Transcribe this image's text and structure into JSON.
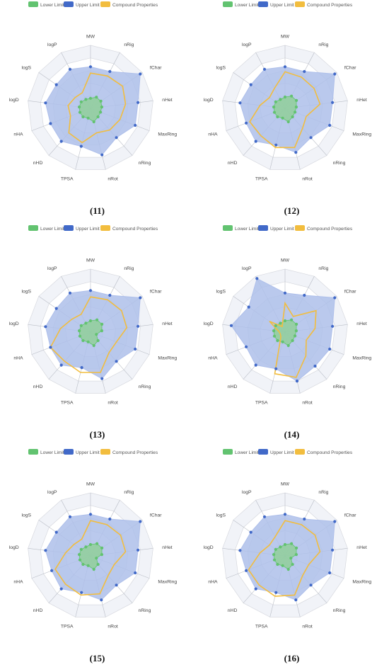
{
  "figure": {
    "colors": {
      "lower": "#62c370",
      "upper": "#4169c8",
      "compound": "#f2bd3e",
      "upper_fill": "#aebfea",
      "lower_fill": "#8fcf95",
      "grid": "#d7d9df",
      "band": "#f1f3f8",
      "label": "#444444"
    }
  },
  "chart_data": [
    {
      "type": "radar",
      "caption": "(11)",
      "legend": {
        "position": "top",
        "items": [
          "Lower Limit",
          "Upper Limit",
          "Compound Properties"
        ]
      },
      "axes": [
        "MW",
        "nRig",
        "fChar",
        "nHet",
        "MaxRing",
        "nRing",
        "nRot",
        "TPSA",
        "nHD",
        "nHA",
        "logD",
        "logS",
        "logP"
      ],
      "range": [
        0,
        1
      ],
      "series": [
        {
          "name": "Lower Limit",
          "values": [
            0.16,
            0.2,
            0.2,
            0.18,
            0.17,
            0.18,
            0.22,
            0.16,
            0.18,
            0.18,
            0.18,
            0.18,
            0.16
          ]
        },
        {
          "name": "Upper Limit",
          "values": [
            0.66,
            0.66,
            0.96,
            0.76,
            0.76,
            0.62,
            0.76,
            0.62,
            0.7,
            0.68,
            0.72,
            0.66,
            0.7
          ]
        },
        {
          "name": "Compound Properties",
          "values": [
            0.56,
            0.58,
            0.62,
            0.56,
            0.5,
            0.46,
            0.4,
            0.56,
            0.52,
            0.34,
            0.36,
            0.3,
            0.28
          ]
        }
      ]
    },
    {
      "type": "radar",
      "caption": "(12)",
      "legend": {
        "position": "top",
        "items": [
          "Lower Limit",
          "Upper Limit",
          "Compound Properties"
        ]
      },
      "axes": [
        "MW",
        "nRig",
        "fChar",
        "nHet",
        "MaxRing",
        "nRing",
        "nRot",
        "TPSA",
        "nHD",
        "nHA",
        "logD",
        "logS",
        "logP"
      ],
      "range": [
        0,
        1
      ],
      "series": [
        {
          "name": "Lower Limit",
          "values": [
            0.18,
            0.22,
            0.22,
            0.18,
            0.17,
            0.18,
            0.22,
            0.16,
            0.18,
            0.18,
            0.18,
            0.18,
            0.16
          ]
        },
        {
          "name": "Upper Limit",
          "values": [
            0.66,
            0.66,
            0.96,
            0.76,
            0.76,
            0.62,
            0.72,
            0.6,
            0.7,
            0.66,
            0.72,
            0.66,
            0.7
          ]
        },
        {
          "name": "Compound Properties",
          "values": [
            0.58,
            0.56,
            0.56,
            0.56,
            0.36,
            0.42,
            0.64,
            0.64,
            0.58,
            0.6,
            0.4,
            0.3,
            0.36
          ]
        }
      ]
    },
    {
      "type": "radar",
      "caption": "(13)",
      "legend": {
        "position": "top",
        "items": [
          "Lower Limit",
          "Upper Limit",
          "Compound Properties"
        ]
      },
      "axes": [
        "MW",
        "nRig",
        "fChar",
        "nHet",
        "MaxRing",
        "nRing",
        "nRot",
        "TPSA",
        "nHD",
        "nHA",
        "logD",
        "logS",
        "logP"
      ],
      "range": [
        0,
        1
      ],
      "series": [
        {
          "name": "Lower Limit",
          "values": [
            0.18,
            0.22,
            0.22,
            0.18,
            0.1,
            0.18,
            0.22,
            0.16,
            0.18,
            0.18,
            0.18,
            0.18,
            0.16
          ]
        },
        {
          "name": "Upper Limit",
          "values": [
            0.66,
            0.66,
            0.96,
            0.76,
            0.76,
            0.62,
            0.76,
            0.58,
            0.7,
            0.68,
            0.72,
            0.66,
            0.7
          ]
        },
        {
          "name": "Compound Properties",
          "values": [
            0.56,
            0.58,
            0.6,
            0.58,
            0.44,
            0.44,
            0.66,
            0.66,
            0.62,
            0.68,
            0.48,
            0.36,
            0.32
          ]
        }
      ]
    },
    {
      "type": "radar",
      "caption": "(14)",
      "legend": {
        "position": "top",
        "items": [
          "Lower Limit",
          "Upper Limit",
          "Compound Properties"
        ]
      },
      "axes": [
        "MW",
        "nRig",
        "fChar",
        "nHet",
        "MaxRing",
        "nRing",
        "nRot",
        "TPSA",
        "nHD",
        "nHA",
        "logD",
        "logS",
        "logP"
      ],
      "range": [
        0,
        1
      ],
      "series": [
        {
          "name": "Lower Limit",
          "values": [
            0.18,
            0.22,
            0.22,
            0.18,
            0.17,
            0.18,
            0.22,
            0.16,
            0.18,
            0.18,
            0.18,
            0.18,
            0.16
          ]
        },
        {
          "name": "Upper Limit",
          "values": [
            0.62,
            0.66,
            0.96,
            0.76,
            0.76,
            0.72,
            0.8,
            0.6,
            0.7,
            0.66,
            0.86,
            0.7,
            0.96
          ]
        },
        {
          "name": "Compound Properties",
          "values": [
            0.46,
            0.28,
            0.6,
            0.48,
            0.36,
            0.5,
            0.74,
            0.68,
            0.1,
            0.08,
            0.1,
            0.3,
            0.1
          ]
        }
      ]
    },
    {
      "type": "radar",
      "caption": "(15)",
      "legend": {
        "position": "top",
        "items": [
          "Lower Limit",
          "Upper Limit",
          "Compound Properties"
        ]
      },
      "axes": [
        "MW",
        "nRig",
        "fChar",
        "nHet",
        "MaxRing",
        "nRing",
        "nRot",
        "TPSA",
        "nHD",
        "nHA",
        "logD",
        "logS",
        "logP"
      ],
      "range": [
        0,
        1
      ],
      "series": [
        {
          "name": "Lower Limit",
          "values": [
            0.18,
            0.22,
            0.22,
            0.18,
            0.1,
            0.18,
            0.22,
            0.16,
            0.18,
            0.18,
            0.18,
            0.18,
            0.16
          ]
        },
        {
          "name": "Upper Limit",
          "values": [
            0.66,
            0.66,
            0.96,
            0.76,
            0.76,
            0.62,
            0.72,
            0.6,
            0.7,
            0.66,
            0.72,
            0.66,
            0.7
          ]
        },
        {
          "name": "Compound Properties",
          "values": [
            0.56,
            0.56,
            0.58,
            0.56,
            0.4,
            0.42,
            0.62,
            0.64,
            0.6,
            0.6,
            0.4,
            0.32,
            0.3
          ]
        }
      ]
    },
    {
      "type": "radar",
      "caption": "(16)",
      "legend": {
        "position": "top",
        "items": [
          "Lower Limit",
          "Upper Limit",
          "Compound Properties"
        ]
      },
      "axes": [
        "MW",
        "nRig",
        "fChar",
        "nHet",
        "MaxRing",
        "nRing",
        "nRot",
        "TPSA",
        "nHD",
        "nHA",
        "logD",
        "logS",
        "logP"
      ],
      "range": [
        0,
        1
      ],
      "series": [
        {
          "name": "Lower Limit",
          "values": [
            0.18,
            0.22,
            0.22,
            0.18,
            0.1,
            0.18,
            0.22,
            0.16,
            0.18,
            0.18,
            0.18,
            0.18,
            0.16
          ]
        },
        {
          "name": "Upper Limit",
          "values": [
            0.66,
            0.66,
            0.96,
            0.76,
            0.76,
            0.62,
            0.72,
            0.6,
            0.7,
            0.66,
            0.72,
            0.66,
            0.7
          ]
        },
        {
          "name": "Compound Properties",
          "values": [
            0.56,
            0.56,
            0.58,
            0.56,
            0.4,
            0.42,
            0.64,
            0.66,
            0.62,
            0.62,
            0.4,
            0.3,
            0.34
          ]
        }
      ]
    }
  ]
}
